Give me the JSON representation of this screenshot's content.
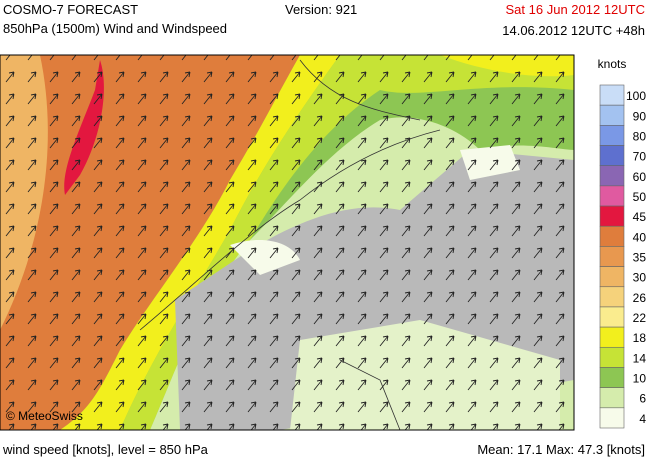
{
  "header": {
    "title": "COSMO-7 FORECAST",
    "subtitle": "850hPa (1500m) Wind and Windspeed",
    "version": "Version: 921",
    "valid_time": "Sat 16 Jun 2012 12UTC",
    "run_time": "14.06.2012 12UTC +48h"
  },
  "map": {
    "copyright": "© MeteoSwiss"
  },
  "legend": {
    "title": "knots",
    "entries": [
      {
        "value": 100,
        "color": "#c9ddf7"
      },
      {
        "value": 90,
        "color": "#a3c2f0"
      },
      {
        "value": 80,
        "color": "#7a98e6"
      },
      {
        "value": 70,
        "color": "#5e70cf"
      },
      {
        "value": 60,
        "color": "#8a66b3"
      },
      {
        "value": 50,
        "color": "#e05aa0"
      },
      {
        "value": 45,
        "color": "#e3173f"
      },
      {
        "value": 40,
        "color": "#df7d3c"
      },
      {
        "value": 35,
        "color": "#e8984f"
      },
      {
        "value": 30,
        "color": "#efb564"
      },
      {
        "value": 26,
        "color": "#f5d27b"
      },
      {
        "value": 22,
        "color": "#faec8e"
      },
      {
        "value": 18,
        "color": "#f2ef1d"
      },
      {
        "value": 14,
        "color": "#c6e336"
      },
      {
        "value": 10,
        "color": "#8dc653"
      },
      {
        "value": 6,
        "color": "#d5ecac"
      },
      {
        "value": 4,
        "color": "#f7fbea"
      }
    ]
  },
  "footer": {
    "left": "wind speed [knots], level = 850 hPa",
    "right": "Mean:  17.1 Max:  47.3 [knots]"
  }
}
